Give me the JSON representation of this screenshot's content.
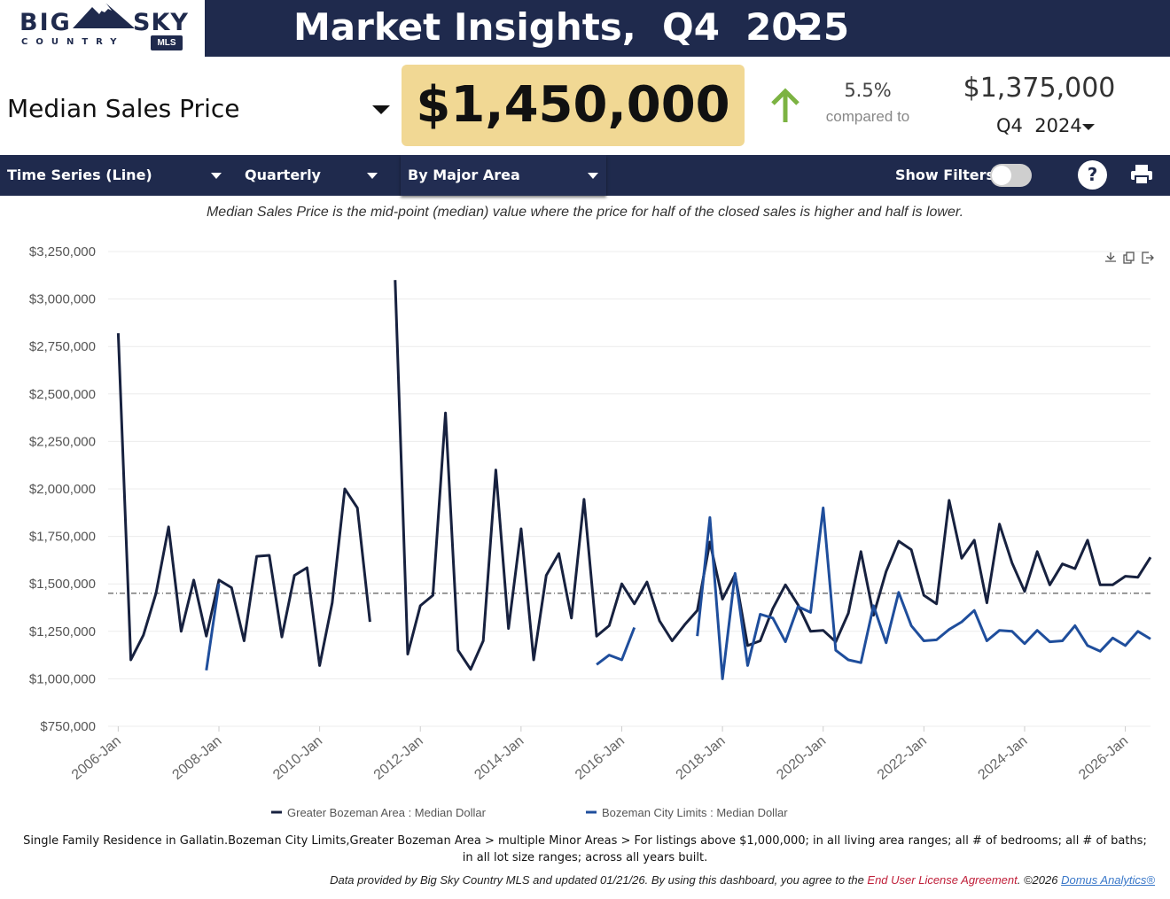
{
  "header": {
    "logo": {
      "word1": "BIG",
      "word2": "SKY",
      "word3": "COUNTRY",
      "badge": "MLS"
    },
    "title": "Market Insights,  Q4  2025"
  },
  "metric": {
    "label": "Median Sales Price",
    "value": "$1,450,000",
    "change_pct": "5.5%",
    "compared_to": "compared to",
    "prev_value": "$1,375,000",
    "prev_period": "Q4  2024",
    "trend_color": "#7cb342",
    "highlight_color": "#f1d894"
  },
  "toolbar": {
    "view": "Time Series (Line)",
    "period": "Quarterly",
    "grouping": "By Major Area",
    "filters_label": "Show Filters:",
    "filters_on": false,
    "help": "?"
  },
  "description": "Median Sales Price is the mid-point (median) value where the price for half of the closed sales is higher and half is lower.",
  "chart_data": {
    "type": "line",
    "ylim": [
      750000,
      3250000
    ],
    "yticks": [
      "$750,000",
      "$1,000,000",
      "$1,250,000",
      "$1,500,000",
      "$1,750,000",
      "$2,000,000",
      "$2,250,000",
      "$2,500,000",
      "$2,750,000",
      "$3,000,000",
      "$3,250,000"
    ],
    "ytick_values": [
      750000,
      1000000,
      1250000,
      1500000,
      1750000,
      2000000,
      2250000,
      2500000,
      2750000,
      3000000,
      3250000
    ],
    "xticks": [
      "2006-Jan",
      "2008-Jan",
      "2010-Jan",
      "2012-Jan",
      "2014-Jan",
      "2016-Jan",
      "2018-Jan",
      "2020-Jan",
      "2022-Jan",
      "2024-Jan",
      "2026-Jan"
    ],
    "xtick_years": [
      2006,
      2008,
      2010,
      2012,
      2014,
      2016,
      2018,
      2020,
      2022,
      2024,
      2026
    ],
    "xlim": [
      2005.8,
      2026.5
    ],
    "reference_line": 1450000,
    "grid": true,
    "legend_position": "bottom",
    "series": [
      {
        "name": "Greater Bozeman Area : Median Dollar",
        "color": "#17213f",
        "points": [
          [
            2006.0,
            2820000
          ],
          [
            2006.25,
            1100000
          ],
          [
            2006.5,
            1230000
          ],
          [
            2006.75,
            1450000
          ],
          [
            2007.0,
            1800000
          ],
          [
            2007.25,
            1250000
          ],
          [
            2007.5,
            1520000
          ],
          [
            2007.75,
            1225000
          ],
          [
            2008.0,
            1520000
          ],
          [
            2008.25,
            1480000
          ],
          [
            2008.5,
            1200000
          ],
          [
            2008.75,
            1645000
          ],
          [
            2009.0,
            1650000
          ],
          [
            2009.25,
            1220000
          ],
          [
            2009.5,
            1545000
          ],
          [
            2009.75,
            1585000
          ],
          [
            2010.0,
            1070000
          ],
          [
            2010.25,
            1400000
          ],
          [
            2010.5,
            2000000
          ],
          [
            2010.75,
            1900000
          ],
          [
            2011.0,
            1300000
          ],
          null,
          [
            2011.5,
            3100000
          ],
          [
            2011.75,
            1130000
          ],
          [
            2012.0,
            1385000
          ],
          [
            2012.25,
            1440000
          ],
          [
            2012.5,
            2400000
          ],
          [
            2012.75,
            1150000
          ],
          [
            2013.0,
            1050000
          ],
          [
            2013.25,
            1200000
          ],
          [
            2013.5,
            2100000
          ],
          [
            2013.75,
            1265000
          ],
          [
            2014.0,
            1790000
          ],
          [
            2014.25,
            1100000
          ],
          [
            2014.5,
            1545000
          ],
          [
            2014.75,
            1660000
          ],
          [
            2015.0,
            1320000
          ],
          [
            2015.25,
            1945000
          ],
          [
            2015.5,
            1225000
          ],
          [
            2015.75,
            1280000
          ],
          [
            2016.0,
            1500000
          ],
          [
            2016.25,
            1395000
          ],
          [
            2016.5,
            1510000
          ],
          [
            2016.75,
            1305000
          ],
          [
            2017.0,
            1200000
          ],
          [
            2017.25,
            1285000
          ],
          [
            2017.5,
            1360000
          ],
          [
            2017.75,
            1720000
          ],
          [
            2018.0,
            1420000
          ],
          [
            2018.25,
            1550000
          ],
          [
            2018.5,
            1175000
          ],
          [
            2018.75,
            1200000
          ],
          [
            2019.0,
            1370000
          ],
          [
            2019.25,
            1495000
          ],
          [
            2019.5,
            1390000
          ],
          [
            2019.75,
            1250000
          ],
          [
            2020.0,
            1255000
          ],
          [
            2020.25,
            1195000
          ],
          [
            2020.5,
            1345000
          ],
          [
            2020.75,
            1670000
          ],
          [
            2021.0,
            1335000
          ],
          [
            2021.25,
            1565000
          ],
          [
            2021.5,
            1725000
          ],
          [
            2021.75,
            1680000
          ],
          [
            2022.0,
            1440000
          ],
          [
            2022.25,
            1395000
          ],
          [
            2022.5,
            1940000
          ],
          [
            2022.75,
            1635000
          ],
          [
            2023.0,
            1730000
          ],
          [
            2023.25,
            1400000
          ],
          [
            2023.5,
            1815000
          ],
          [
            2023.75,
            1610000
          ],
          [
            2024.0,
            1460000
          ],
          [
            2024.25,
            1670000
          ],
          [
            2024.5,
            1495000
          ],
          [
            2024.75,
            1605000
          ],
          [
            2025.0,
            1580000
          ],
          [
            2025.25,
            1730000
          ],
          [
            2025.5,
            1495000
          ],
          [
            2025.75,
            1495000
          ],
          [
            2026.0,
            1540000
          ],
          [
            2026.25,
            1535000
          ],
          [
            2026.5,
            1640000
          ]
        ]
      },
      {
        "name": "Bozeman City Limits : Median Dollar",
        "color": "#1f4e9c",
        "points": [
          [
            2007.75,
            1045000
          ],
          [
            2008.0,
            1500000
          ],
          null,
          [
            2015.5,
            1075000
          ],
          [
            2015.75,
            1125000
          ],
          [
            2016.0,
            1100000
          ],
          [
            2016.25,
            1270000
          ],
          null,
          [
            2017.5,
            1225000
          ],
          [
            2017.75,
            1850000
          ],
          [
            2018.0,
            1000000
          ],
          [
            2018.25,
            1555000
          ],
          [
            2018.5,
            1070000
          ],
          [
            2018.75,
            1340000
          ],
          [
            2019.0,
            1320000
          ],
          [
            2019.25,
            1195000
          ],
          [
            2019.5,
            1380000
          ],
          [
            2019.75,
            1350000
          ],
          [
            2020.0,
            1900000
          ],
          [
            2020.25,
            1150000
          ],
          [
            2020.5,
            1100000
          ],
          [
            2020.75,
            1085000
          ],
          [
            2021.0,
            1385000
          ],
          [
            2021.25,
            1190000
          ],
          [
            2021.5,
            1455000
          ],
          [
            2021.75,
            1280000
          ],
          [
            2022.0,
            1200000
          ],
          [
            2022.25,
            1205000
          ],
          [
            2022.5,
            1260000
          ],
          [
            2022.75,
            1300000
          ],
          [
            2023.0,
            1360000
          ],
          [
            2023.25,
            1200000
          ],
          [
            2023.5,
            1255000
          ],
          [
            2023.75,
            1250000
          ],
          [
            2024.0,
            1185000
          ],
          [
            2024.25,
            1255000
          ],
          [
            2024.5,
            1195000
          ],
          [
            2024.75,
            1200000
          ],
          [
            2025.0,
            1280000
          ],
          [
            2025.25,
            1175000
          ],
          [
            2025.5,
            1145000
          ],
          [
            2025.75,
            1215000
          ],
          [
            2026.0,
            1175000
          ],
          [
            2026.25,
            1250000
          ],
          [
            2026.5,
            1210000
          ]
        ]
      }
    ]
  },
  "footnote": "Single Family Residence in Gallatin.Bozeman City Limits,Greater Bozeman Area > multiple Minor Areas > For listings above $1,000,000; in all living area ranges; all # of bedrooms; all # of baths; in all lot size ranges; across all years built.",
  "credits": {
    "prefix": "Data provided by Big Sky Country MLS and updated 01/21/26.  By using this dashboard, you agree to the ",
    "eula": "End User License Agreement",
    "mid": ".  ©2026 ",
    "domus": "Domus Analytics®"
  }
}
